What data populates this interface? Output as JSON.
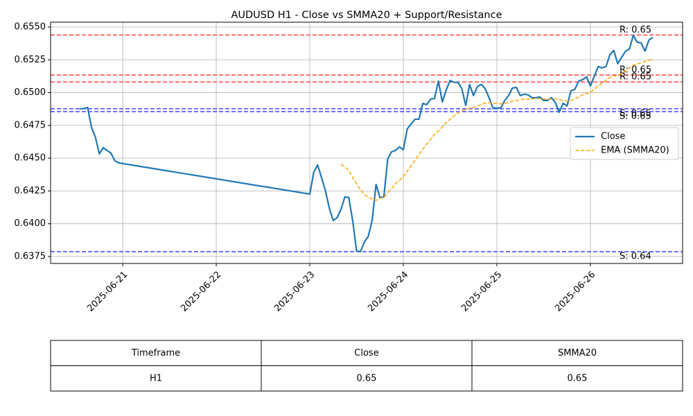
{
  "chart_data": {
    "type": "line",
    "title": "AUDUSD H1 - Close vs SMMA20 + Support/Resistance",
    "x": [
      "2025-06-20T13:00",
      "2025-06-20T14:00",
      "2025-06-20T15:00",
      "2025-06-20T16:00",
      "2025-06-20T17:00",
      "2025-06-20T18:00",
      "2025-06-20T19:00",
      "2025-06-20T20:00",
      "2025-06-20T21:00",
      "2025-06-20T22:00",
      "2025-06-20T23:00",
      "2025-06-21T00:00",
      "2025-06-23T00:00",
      "2025-06-23T01:00",
      "2025-06-23T02:00",
      "2025-06-23T03:00",
      "2025-06-23T04:00",
      "2025-06-23T05:00",
      "2025-06-23T06:00",
      "2025-06-23T07:00",
      "2025-06-23T08:00",
      "2025-06-23T09:00",
      "2025-06-23T10:00",
      "2025-06-23T11:00",
      "2025-06-23T12:00",
      "2025-06-23T13:00",
      "2025-06-23T14:00",
      "2025-06-23T15:00",
      "2025-06-23T16:00",
      "2025-06-23T17:00",
      "2025-06-23T18:00",
      "2025-06-23T19:00",
      "2025-06-23T20:00",
      "2025-06-23T21:00",
      "2025-06-23T22:00",
      "2025-06-23T23:00",
      "2025-06-24T00:00",
      "2025-06-24T01:00",
      "2025-06-24T02:00",
      "2025-06-24T03:00",
      "2025-06-24T04:00",
      "2025-06-24T05:00",
      "2025-06-24T06:00",
      "2025-06-24T07:00",
      "2025-06-24T08:00",
      "2025-06-24T09:00",
      "2025-06-24T10:00",
      "2025-06-24T11:00",
      "2025-06-24T12:00",
      "2025-06-24T13:00",
      "2025-06-24T14:00",
      "2025-06-24T15:00",
      "2025-06-24T16:00",
      "2025-06-24T17:00",
      "2025-06-24T18:00",
      "2025-06-24T19:00",
      "2025-06-24T20:00",
      "2025-06-24T21:00",
      "2025-06-24T22:00",
      "2025-06-24T23:00",
      "2025-06-25T00:00",
      "2025-06-25T01:00",
      "2025-06-25T02:00",
      "2025-06-25T03:00",
      "2025-06-25T04:00",
      "2025-06-25T05:00",
      "2025-06-25T06:00",
      "2025-06-25T07:00",
      "2025-06-25T08:00",
      "2025-06-25T09:00",
      "2025-06-25T10:00",
      "2025-06-25T11:00",
      "2025-06-25T12:00",
      "2025-06-25T13:00",
      "2025-06-25T14:00",
      "2025-06-25T15:00",
      "2025-06-25T16:00",
      "2025-06-25T17:00",
      "2025-06-25T18:00",
      "2025-06-25T19:00",
      "2025-06-25T20:00",
      "2025-06-25T21:00",
      "2025-06-25T22:00",
      "2025-06-25T23:00",
      "2025-06-26T00:00",
      "2025-06-26T01:00",
      "2025-06-26T02:00",
      "2025-06-26T03:00",
      "2025-06-26T04:00",
      "2025-06-26T05:00",
      "2025-06-26T06:00",
      "2025-06-26T07:00",
      "2025-06-26T08:00",
      "2025-06-26T09:00",
      "2025-06-26T10:00",
      "2025-06-26T11:00",
      "2025-06-26T12:00",
      "2025-06-26T13:00",
      "2025-06-26T14:00",
      "2025-06-26T15:00",
      "2025-06-26T16:00"
    ],
    "series": [
      {
        "name": "Close",
        "color": "#1f77b4",
        "dashed": false,
        "values": [
          0.64877,
          0.64877,
          0.64887,
          0.64734,
          0.6466,
          0.64533,
          0.6458,
          0.64559,
          0.64538,
          0.6448,
          0.64464,
          0.64459,
          0.64226,
          0.6439,
          0.64448,
          0.64353,
          0.64253,
          0.6412,
          0.64025,
          0.64046,
          0.6411,
          0.64205,
          0.642,
          0.64025,
          0.63792,
          0.63787,
          0.63861,
          0.63903,
          0.64025,
          0.643,
          0.642,
          0.64205,
          0.64496,
          0.64549,
          0.64559,
          0.64586,
          0.64564,
          0.64723,
          0.6476,
          0.64797,
          0.64797,
          0.64918,
          0.64908,
          0.6495,
          0.64956,
          0.65088,
          0.64929,
          0.6502,
          0.65093,
          0.65078,
          0.65078,
          0.6503,
          0.64903,
          0.65062,
          0.64977,
          0.65046,
          0.65062,
          0.6503,
          0.64961,
          0.64882,
          0.64882,
          0.64882,
          0.6494,
          0.64977,
          0.65035,
          0.6504,
          0.64977,
          0.64988,
          0.64983,
          0.64961,
          0.64961,
          0.64967,
          0.6494,
          0.6494,
          0.64961,
          0.64924,
          0.6485,
          0.64919,
          0.64898,
          0.65014,
          0.65025,
          0.65088,
          0.65099,
          0.6512,
          0.65051,
          0.65125,
          0.65199,
          0.65188,
          0.65199,
          0.65289,
          0.65321,
          0.65221,
          0.65268,
          0.65316,
          0.65332,
          0.65437,
          0.65384,
          0.65379,
          0.65316,
          0.654,
          0.65421
        ]
      },
      {
        "name": "EMA (SMMA20)",
        "color": "#ffa500",
        "dashed": true,
        "values": [
          null,
          null,
          null,
          null,
          null,
          null,
          null,
          null,
          null,
          null,
          null,
          null,
          null,
          null,
          null,
          null,
          null,
          null,
          null,
          null,
          0.64453,
          0.64432,
          0.64406,
          0.64353,
          0.64305,
          0.64258,
          0.64226,
          0.642,
          0.64189,
          0.64178,
          0.64194,
          0.642,
          0.64237,
          0.64268,
          0.64305,
          0.64332,
          0.64358,
          0.64401,
          0.64443,
          0.64485,
          0.64528,
          0.6457,
          0.64607,
          0.64644,
          0.64681,
          0.64707,
          0.64739,
          0.64771,
          0.64797,
          0.64824,
          0.64845,
          0.64861,
          0.64871,
          0.64882,
          0.64887,
          0.64898,
          0.64908,
          0.64919,
          0.64924,
          0.64919,
          0.64919,
          0.64914,
          0.64919,
          0.64924,
          0.64935,
          0.6494,
          0.64946,
          0.64951,
          0.64951,
          0.64951,
          0.64956,
          0.64956,
          0.64951,
          0.64951,
          0.64951,
          0.64951,
          0.64946,
          0.6494,
          0.64935,
          0.6494,
          0.64951,
          0.64967,
          0.64983,
          0.64993,
          0.65004,
          0.65025,
          0.65051,
          0.65072,
          0.65093,
          0.65115,
          0.65125,
          0.6513,
          0.65146,
          0.65167,
          0.65188,
          0.65209,
          0.6522,
          0.65226,
          0.65236,
          0.65247,
          0.65258
        ]
      }
    ],
    "resistance_color": "#ff0000",
    "resistance": [
      {
        "label": "R: 0.65",
        "value": 0.65439
      },
      {
        "label": "R: 0.65",
        "value": 0.65134
      },
      {
        "label": "R: 0.65",
        "value": 0.65081
      }
    ],
    "support_color": "#0000ff",
    "support": [
      {
        "label": "S: 0.65",
        "value": 0.64877
      },
      {
        "label": "S: 0.65",
        "value": 0.64855
      },
      {
        "label": "S: 0.64",
        "value": 0.63787
      }
    ],
    "xlim": [
      "2025-06-20T05:30",
      "2025-06-26T23:39"
    ],
    "xticks": [
      "2025-06-21",
      "2025-06-22",
      "2025-06-23",
      "2025-06-24",
      "2025-06-25",
      "2025-06-26"
    ],
    "ylim": [
      0.63697,
      0.65537
    ],
    "yticks": [
      0.6375,
      {
        "value": 0.64,
        "label": "0.6400"
      },
      0.6425,
      {
        "value": 0.645,
        "label": "0.6450"
      },
      0.6475,
      {
        "value": 0.65,
        "label": "0.6500"
      },
      0.6525,
      {
        "value": 0.655,
        "label": "0.6550"
      }
    ],
    "grid": true,
    "legend": "center right"
  },
  "table": {
    "columns": [
      "Timeframe",
      "Close",
      "SMMA20"
    ],
    "rows": [
      [
        "H1",
        "0.65",
        "0.65"
      ]
    ]
  }
}
